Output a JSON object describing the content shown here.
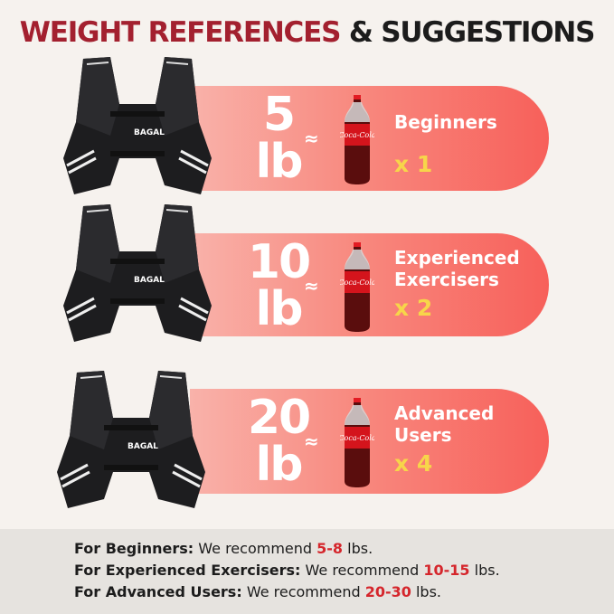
{
  "title": {
    "part1": "WEIGHT REFERENCES",
    "part2": "& SUGGESTIONS"
  },
  "colors": {
    "title_red": "#a3202f",
    "accent_red": "#d5262c",
    "multiplier_yellow": "#f7d54a",
    "pill_gradient": [
      "#f9b2aa",
      "#f7605a"
    ]
  },
  "rows": [
    {
      "weight": "5",
      "unit": "lb",
      "approx": "≈",
      "label_lines": [
        "Beginners"
      ],
      "multiplier": "x 1",
      "brand_on_vest": "BAGAL"
    },
    {
      "weight": "10",
      "unit": "lb",
      "approx": "≈",
      "label_lines": [
        "Experienced",
        "Exercisers"
      ],
      "multiplier": "x 2",
      "brand_on_vest": "BAGAL"
    },
    {
      "weight": "20",
      "unit": "lb",
      "approx": "≈",
      "label_lines": [
        "Advanced",
        "Users"
      ],
      "multiplier": "x 4",
      "brand_on_vest": "BAGAL"
    }
  ],
  "recommendations": [
    {
      "group": "For Beginners:",
      "text": "We recommend",
      "range": "5-8",
      "unit": "lbs."
    },
    {
      "group": "For Experienced Exercisers:",
      "text": "We recommend",
      "range": "10-15",
      "unit": "lbs."
    },
    {
      "group": "For Advanced Users:",
      "text": "We recommend",
      "range": "20-30",
      "unit": "lbs."
    }
  ]
}
